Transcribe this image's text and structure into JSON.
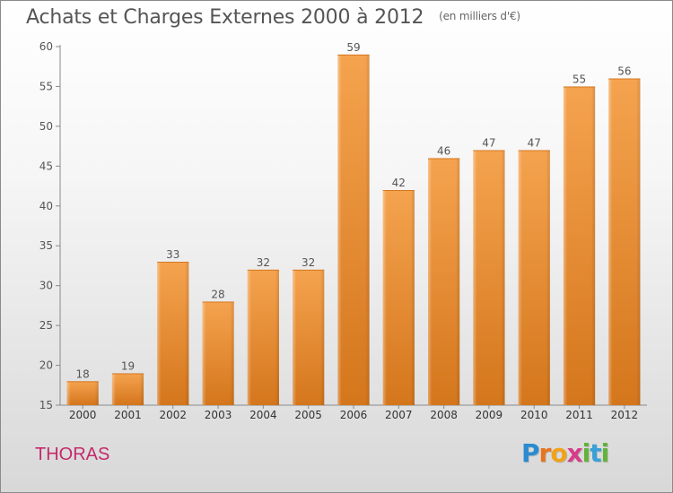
{
  "header": {
    "title": "Achats et Charges Externes 2000 à 2012",
    "unit": "(en milliers d'€)"
  },
  "footer": {
    "location": "THORAS",
    "brand_letters": [
      "P",
      "r",
      "o",
      "x",
      "i",
      "t",
      "i"
    ],
    "brand_colors": [
      "#2a8bd0",
      "#e8731c",
      "#f1a21b",
      "#d63c8a",
      "#63b23a",
      "#3aa0d8",
      "#63b23a"
    ]
  },
  "chart_data": {
    "type": "bar",
    "categories": [
      "2000",
      "2001",
      "2002",
      "2003",
      "2004",
      "2005",
      "2006",
      "2007",
      "2008",
      "2009",
      "2010",
      "2011",
      "2012"
    ],
    "values": [
      18,
      19,
      33,
      28,
      32,
      32,
      59,
      42,
      46,
      47,
      47,
      55,
      56
    ],
    "ylim": [
      15,
      60
    ],
    "yticks": [
      15,
      20,
      25,
      30,
      35,
      40,
      45,
      50,
      55,
      60
    ],
    "grid": false,
    "bar_color_top": "#f5a34f",
    "bar_color_bottom": "#d4761c",
    "xlabel": "",
    "ylabel": ""
  }
}
